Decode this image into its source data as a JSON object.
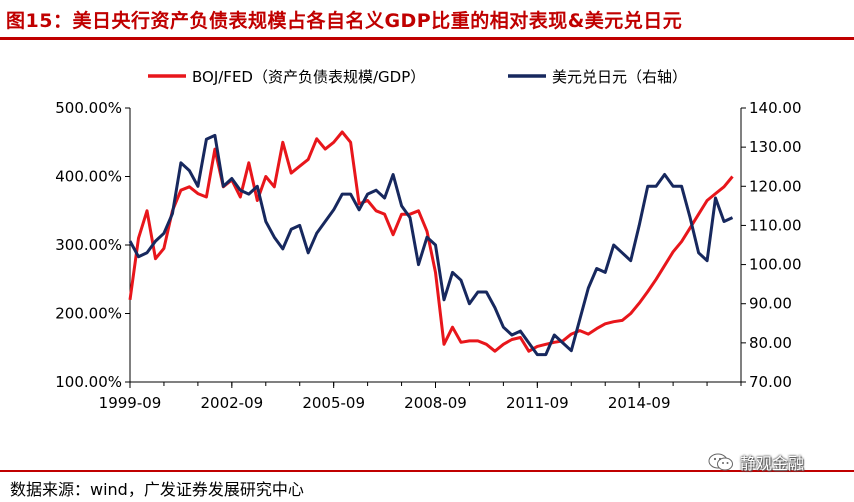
{
  "title": "图15：美日央行资产负债表规模占各自名义GDP比重的相对表现&美元兑日元",
  "source": "数据来源：wind，广发证券发展研究中心",
  "watermark": "静观金融",
  "colors": {
    "title": "#c00000",
    "series1": "#e8161b",
    "series2": "#17285e",
    "rule": "#c00000"
  },
  "chart_data": {
    "type": "line",
    "x_ticks": [
      "1999-09",
      "2002-09",
      "2005-09",
      "2008-09",
      "2011-09",
      "2014-09"
    ],
    "x_range": [
      "1999-09",
      "2017-09"
    ],
    "y_left": {
      "ticks": [
        "100.00%",
        "200.00%",
        "300.00%",
        "400.00%",
        "500.00%"
      ],
      "range": [
        100,
        500
      ]
    },
    "y_right": {
      "ticks": [
        "70.00",
        "80.00",
        "90.00",
        "100.00",
        "110.00",
        "120.00",
        "130.00",
        "140.00"
      ],
      "range": [
        70,
        140
      ]
    },
    "legend_position": "top",
    "series": [
      {
        "name": "BOJ/FED（资产负债表规模/GDP）",
        "axis": "left",
        "points": [
          [
            "1999-09",
            220
          ],
          [
            "1999-12",
            310
          ],
          [
            "2000-03",
            350
          ],
          [
            "2000-06",
            280
          ],
          [
            "2000-09",
            295
          ],
          [
            "2000-12",
            350
          ],
          [
            "2001-03",
            380
          ],
          [
            "2001-06",
            385
          ],
          [
            "2001-09",
            375
          ],
          [
            "2001-12",
            370
          ],
          [
            "2002-03",
            440
          ],
          [
            "2002-06",
            385
          ],
          [
            "2002-09",
            395
          ],
          [
            "2002-12",
            370
          ],
          [
            "2003-03",
            420
          ],
          [
            "2003-06",
            365
          ],
          [
            "2003-09",
            400
          ],
          [
            "2003-12",
            385
          ],
          [
            "2004-03",
            450
          ],
          [
            "2004-06",
            405
          ],
          [
            "2004-09",
            415
          ],
          [
            "2004-12",
            425
          ],
          [
            "2005-03",
            455
          ],
          [
            "2005-06",
            440
          ],
          [
            "2005-09",
            450
          ],
          [
            "2005-12",
            465
          ],
          [
            "2006-03",
            450
          ],
          [
            "2006-06",
            360
          ],
          [
            "2006-09",
            365
          ],
          [
            "2006-12",
            350
          ],
          [
            "2007-03",
            345
          ],
          [
            "2007-06",
            315
          ],
          [
            "2007-09",
            345
          ],
          [
            "2007-12",
            345
          ],
          [
            "2008-03",
            350
          ],
          [
            "2008-06",
            320
          ],
          [
            "2008-09",
            260
          ],
          [
            "2008-12",
            155
          ],
          [
            "2009-03",
            180
          ],
          [
            "2009-06",
            158
          ],
          [
            "2009-09",
            160
          ],
          [
            "2009-12",
            160
          ],
          [
            "2010-03",
            155
          ],
          [
            "2010-06",
            145
          ],
          [
            "2010-09",
            155
          ],
          [
            "2010-12",
            162
          ],
          [
            "2011-03",
            165
          ],
          [
            "2011-06",
            145
          ],
          [
            "2011-09",
            152
          ],
          [
            "2011-12",
            155
          ],
          [
            "2012-03",
            158
          ],
          [
            "2012-06",
            160
          ],
          [
            "2012-09",
            170
          ],
          [
            "2012-12",
            175
          ],
          [
            "2013-03",
            170
          ],
          [
            "2013-06",
            178
          ],
          [
            "2013-09",
            185
          ],
          [
            "2013-12",
            188
          ],
          [
            "2014-03",
            190
          ],
          [
            "2014-06",
            200
          ],
          [
            "2014-09",
            215
          ],
          [
            "2014-12",
            232
          ],
          [
            "2015-03",
            250
          ],
          [
            "2015-06",
            270
          ],
          [
            "2015-09",
            290
          ],
          [
            "2015-12",
            305
          ],
          [
            "2016-03",
            325
          ],
          [
            "2016-06",
            345
          ],
          [
            "2016-09",
            365
          ],
          [
            "2016-12",
            375
          ],
          [
            "2017-03",
            385
          ],
          [
            "2017-06",
            400
          ]
        ]
      },
      {
        "name": "美元兑日元（右轴）",
        "axis": "right",
        "points": [
          [
            "1999-09",
            106
          ],
          [
            "1999-12",
            102
          ],
          [
            "2000-03",
            103
          ],
          [
            "2000-06",
            106
          ],
          [
            "2000-09",
            108
          ],
          [
            "2000-12",
            113
          ],
          [
            "2001-03",
            126
          ],
          [
            "2001-06",
            124
          ],
          [
            "2001-09",
            120
          ],
          [
            "2001-12",
            132
          ],
          [
            "2002-03",
            133
          ],
          [
            "2002-06",
            120
          ],
          [
            "2002-09",
            122
          ],
          [
            "2002-12",
            119
          ],
          [
            "2003-03",
            118
          ],
          [
            "2003-06",
            120
          ],
          [
            "2003-09",
            111
          ],
          [
            "2003-12",
            107
          ],
          [
            "2004-03",
            104
          ],
          [
            "2004-06",
            109
          ],
          [
            "2004-09",
            110
          ],
          [
            "2004-12",
            103
          ],
          [
            "2005-03",
            108
          ],
          [
            "2005-06",
            111
          ],
          [
            "2005-09",
            114
          ],
          [
            "2005-12",
            118
          ],
          [
            "2006-03",
            118
          ],
          [
            "2006-06",
            114
          ],
          [
            "2006-09",
            118
          ],
          [
            "2006-12",
            119
          ],
          [
            "2007-03",
            117
          ],
          [
            "2007-06",
            123
          ],
          [
            "2007-09",
            115
          ],
          [
            "2007-12",
            112
          ],
          [
            "2008-03",
            100
          ],
          [
            "2008-06",
            107
          ],
          [
            "2008-09",
            105
          ],
          [
            "2008-12",
            91
          ],
          [
            "2009-03",
            98
          ],
          [
            "2009-06",
            96
          ],
          [
            "2009-09",
            90
          ],
          [
            "2009-12",
            93
          ],
          [
            "2010-03",
            93
          ],
          [
            "2010-06",
            89
          ],
          [
            "2010-09",
            84
          ],
          [
            "2010-12",
            82
          ],
          [
            "2011-03",
            83
          ],
          [
            "2011-06",
            80
          ],
          [
            "2011-09",
            77
          ],
          [
            "2011-12",
            77
          ],
          [
            "2012-03",
            82
          ],
          [
            "2012-06",
            80
          ],
          [
            "2012-09",
            78
          ],
          [
            "2012-12",
            86
          ],
          [
            "2013-03",
            94
          ],
          [
            "2013-06",
            99
          ],
          [
            "2013-09",
            98
          ],
          [
            "2013-12",
            105
          ],
          [
            "2014-03",
            103
          ],
          [
            "2014-06",
            101
          ],
          [
            "2014-09",
            110
          ],
          [
            "2014-12",
            120
          ],
          [
            "2015-03",
            120
          ],
          [
            "2015-06",
            123
          ],
          [
            "2015-09",
            120
          ],
          [
            "2015-12",
            120
          ],
          [
            "2016-03",
            112
          ],
          [
            "2016-06",
            103
          ],
          [
            "2016-09",
            101
          ],
          [
            "2016-12",
            117
          ],
          [
            "2017-03",
            111
          ],
          [
            "2017-06",
            112
          ]
        ]
      }
    ]
  }
}
